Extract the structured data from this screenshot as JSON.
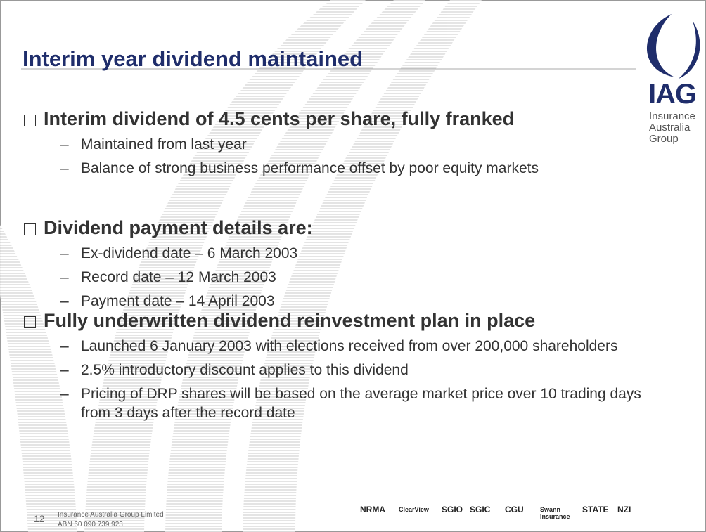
{
  "title": "Interim year dividend maintained",
  "logo": {
    "mark": "IAG",
    "lines": [
      "Insurance",
      "Australia",
      "Group"
    ]
  },
  "sections": [
    {
      "heading": "Interim dividend of 4.5 cents per share, fully franked",
      "items": [
        "Maintained from last year",
        "Balance of strong business performance offset by poor equity markets"
      ]
    },
    {
      "heading": "Dividend payment details are:",
      "items": [
        "Ex-dividend date – 6 March 2003",
        "Record date – 12 March 2003",
        "Payment date – 14 April 2003"
      ]
    },
    {
      "heading": "Fully underwritten dividend reinvestment plan in place",
      "items": [
        "Launched 6 January 2003 with elections received from over 200,000 shareholders",
        "2.5% introductory discount applies to this dividend",
        "Pricing of DRP shares will be based on the average market price over 10 trading days from 3 days after the record date"
      ]
    }
  ],
  "footer": {
    "page": "12",
    "company": "Insurance Australia Group Limited",
    "abn": "ABN 60 090 739 923"
  },
  "brands": [
    "NRMA",
    "ClearView",
    "SGIO",
    "SGIC",
    "CGU",
    "Swann Insurance",
    "STATE",
    "NZI"
  ]
}
